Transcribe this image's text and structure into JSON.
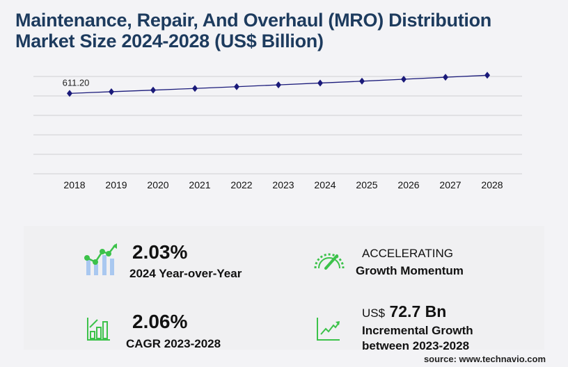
{
  "title_line1": "Maintenance, Repair, And Overhaul (MRO) Distribution",
  "title_line2": "Market Size 2024-2028 (US$ Billion)",
  "chart_data": {
    "type": "line",
    "categories": [
      "2018",
      "2019",
      "2020",
      "2021",
      "2022",
      "2023",
      "2024",
      "2025",
      "2026",
      "2027",
      "2028"
    ],
    "values": [
      611.2,
      624,
      636,
      649,
      662,
      676,
      690,
      704,
      719,
      734,
      749
    ],
    "data_labels": [
      "611.20"
    ],
    "ylim": [
      0,
      740
    ],
    "grid": true,
    "series_color": "#1a1a7a",
    "marker": "diamond"
  },
  "stats": {
    "yoy_value": "2.03%",
    "yoy_label": "2024 Year-over-Year",
    "momentum_value": "ACCELERATING",
    "momentum_label": "Growth Momentum",
    "cagr_value": "2.06%",
    "cagr_label": "CAGR 2023-2028",
    "incr_prefix": "US$",
    "incr_value": "72.7 Bn",
    "incr_label1": "Incremental Growth",
    "incr_label2": "between 2023-2028"
  },
  "icons": [
    "growth-chart-icon",
    "speedometer-icon",
    "bar-chart-icon",
    "trend-line-icon"
  ],
  "accent_color": "#2ecc40",
  "source": "source: www.technavio.com"
}
